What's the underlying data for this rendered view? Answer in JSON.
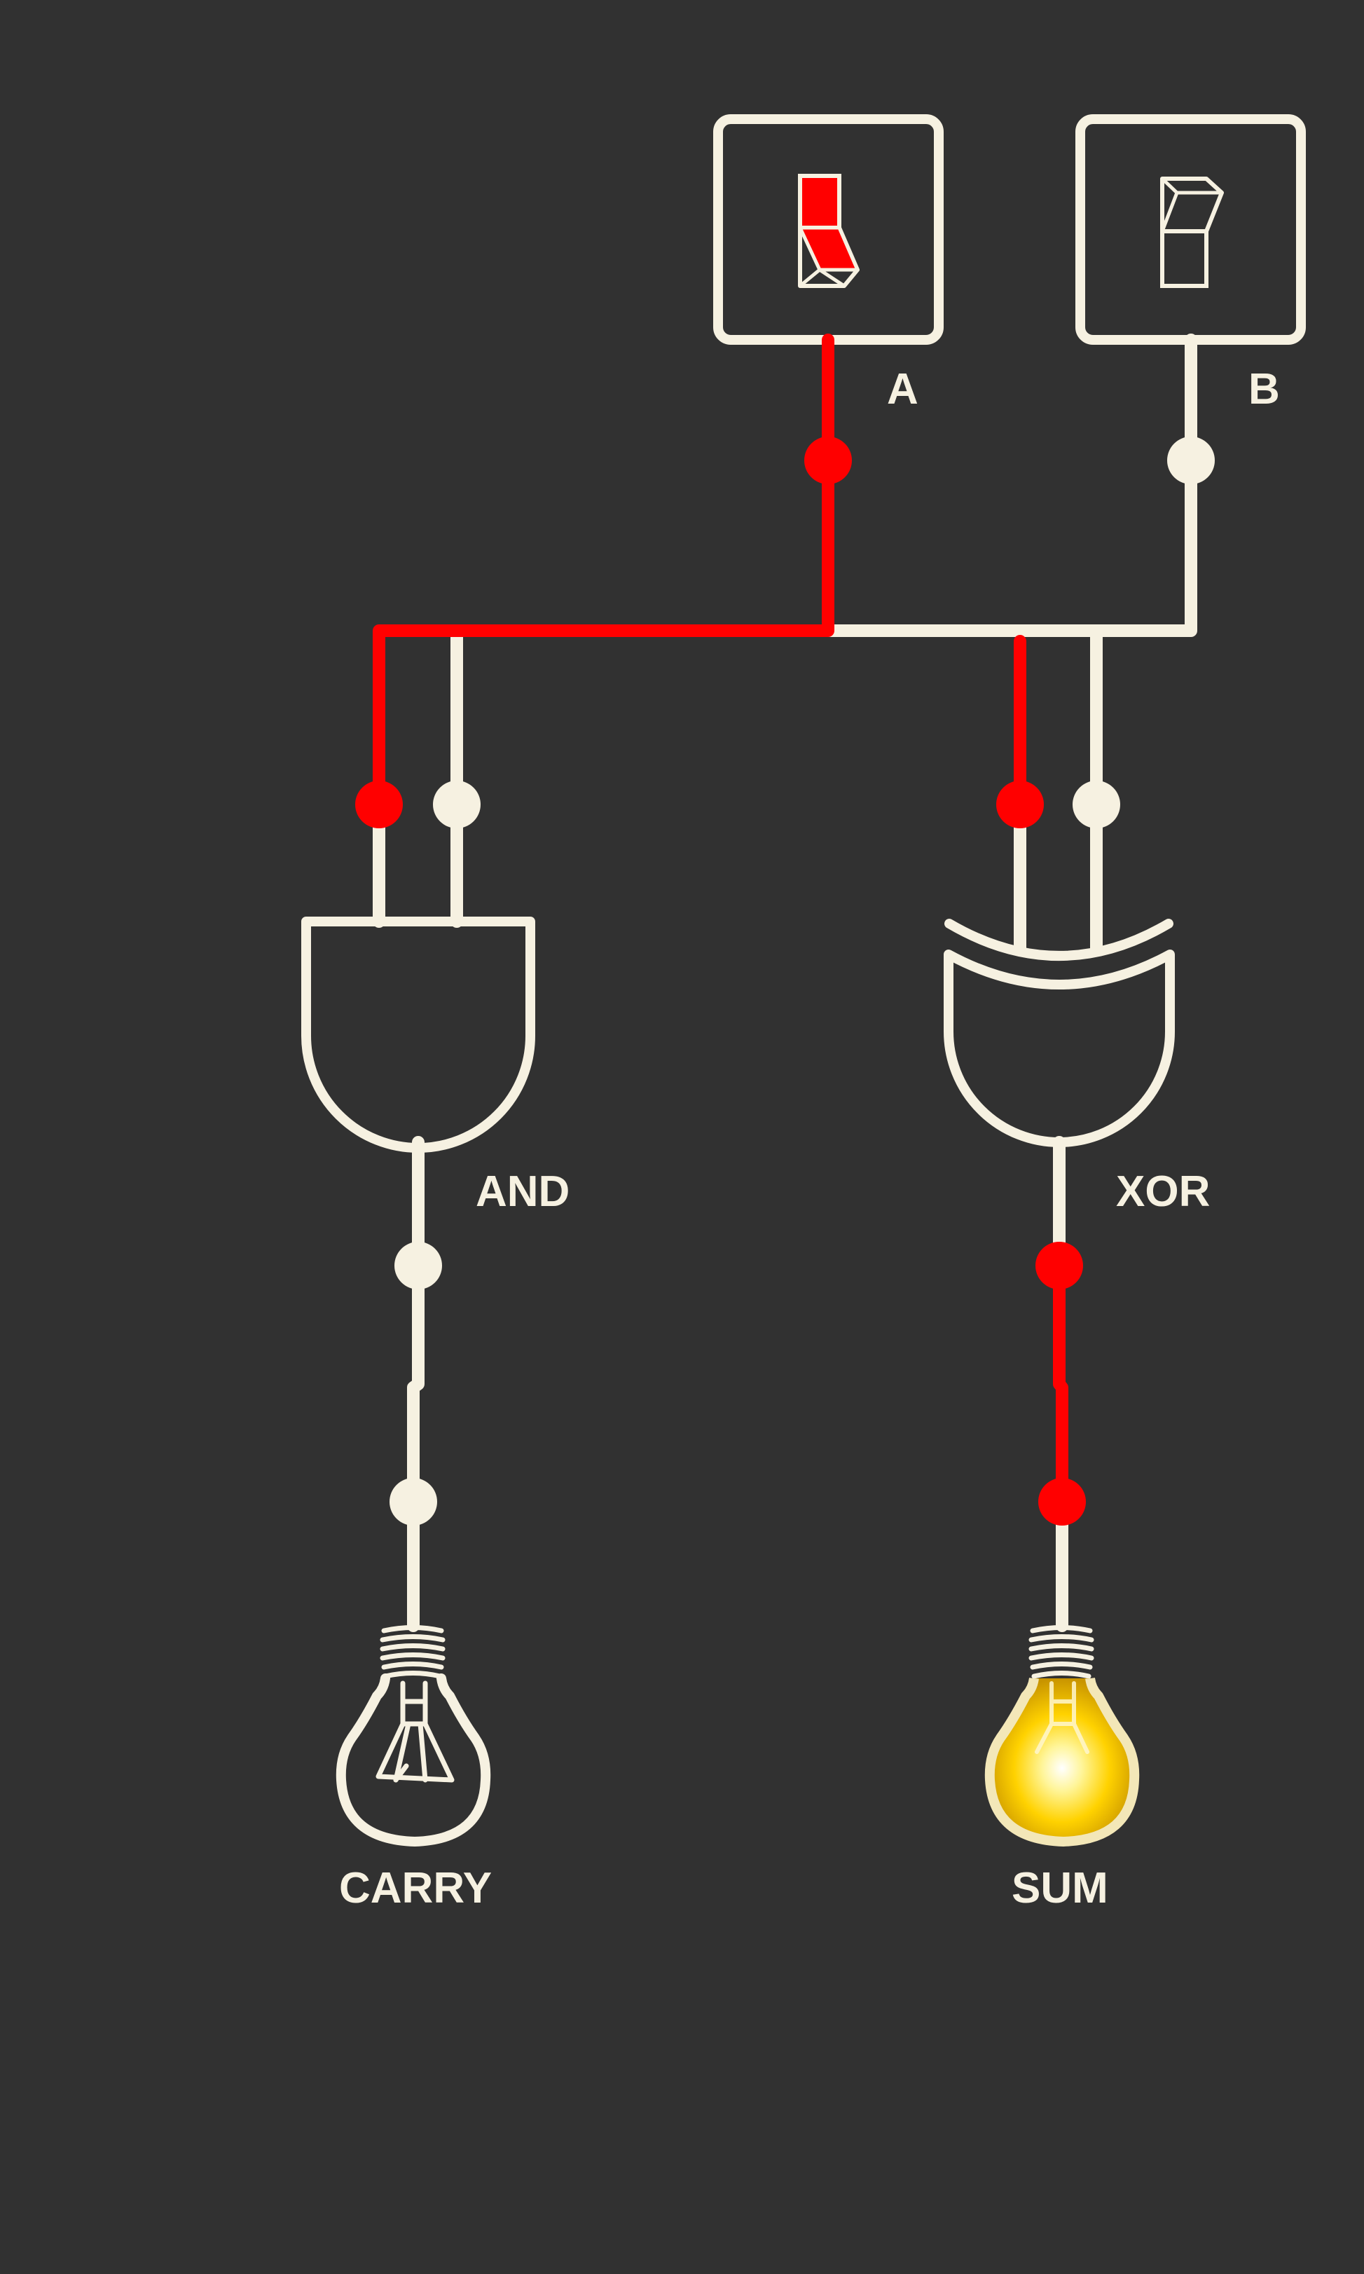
{
  "switches": [
    {
      "label": "A",
      "state": "on"
    },
    {
      "label": "B",
      "state": "off"
    }
  ],
  "gates": [
    {
      "label": "AND",
      "output": "off"
    },
    {
      "label": "XOR",
      "output": "on"
    }
  ],
  "outputs": [
    {
      "label": "CARRY",
      "lit": false
    },
    {
      "label": "SUM",
      "lit": true
    }
  ],
  "colors": {
    "background": "#313131",
    "wire_off": "#f6f1e1",
    "wire_on": "#ff0000",
    "lamp_glow": "#ffd700"
  }
}
